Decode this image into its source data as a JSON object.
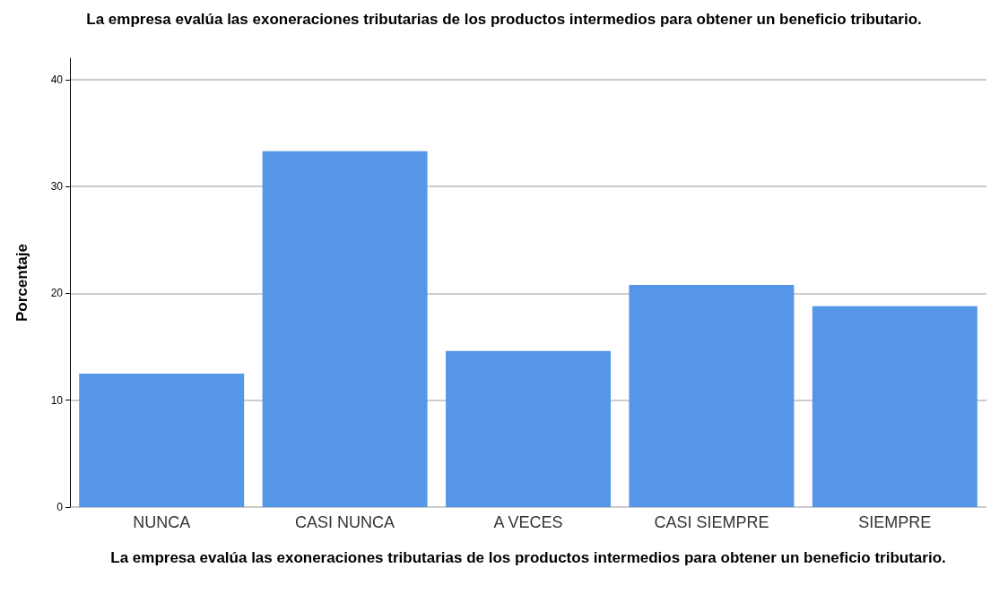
{
  "chart_data": {
    "type": "bar",
    "title": "La empresa evalúa las exoneraciones tributarias de los productos intermedios para obtener un beneficio tributario.",
    "xlabel": "La empresa evalúa las exoneraciones tributarias de los productos intermedios para obtener un beneficio tributario.",
    "ylabel": "Porcentaje",
    "categories": [
      "NUNCA",
      "CASI NUNCA",
      "A VECES",
      "CASI SIEMPRE",
      "SIEMPRE"
    ],
    "values": [
      12.5,
      33.3,
      14.6,
      20.8,
      18.8
    ],
    "color": "#5596e6",
    "ylim": [
      0,
      42
    ],
    "yticks": [
      0,
      10,
      20,
      30,
      40
    ],
    "grid": "y"
  }
}
